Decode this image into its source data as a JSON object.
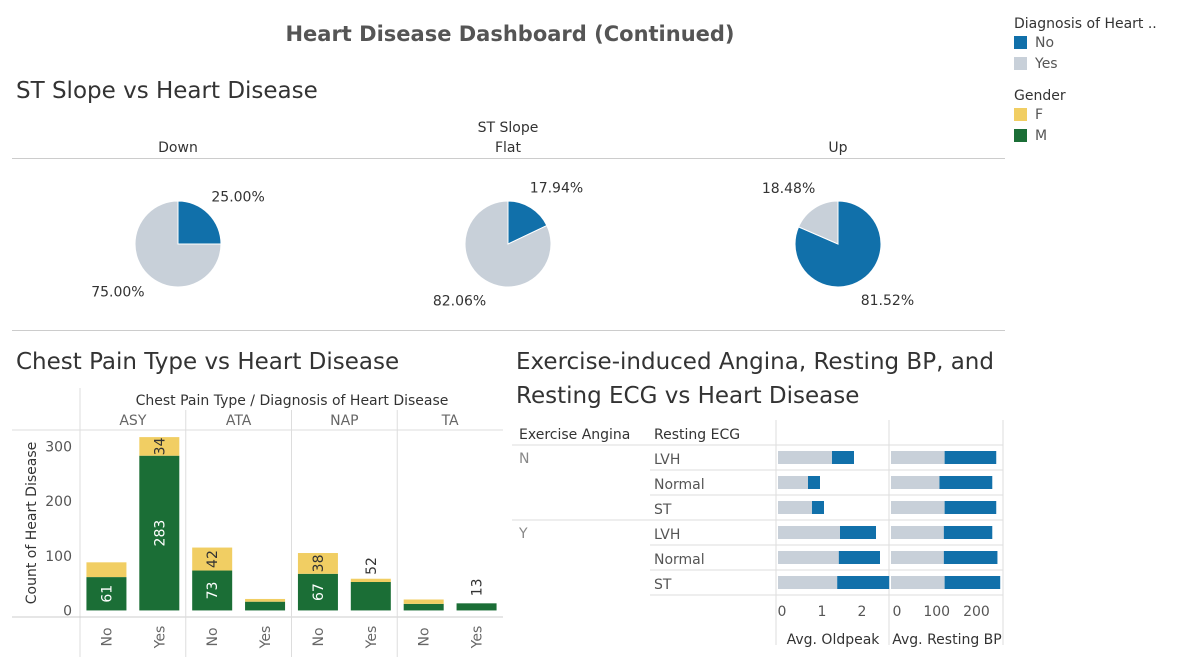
{
  "dashboard": {
    "title": "Heart Disease Dashboard (Continued)"
  },
  "legend": {
    "diagnosis": {
      "title": "Diagnosis of Heart ..",
      "items": [
        {
          "label": "No",
          "color": "#1170aa"
        },
        {
          "label": "Yes",
          "color": "#c8d0d9"
        }
      ]
    },
    "gender": {
      "title": "Gender",
      "items": [
        {
          "label": "F",
          "color": "#f1ce63"
        },
        {
          "label": "M",
          "color": "#1b6e36"
        }
      ]
    }
  },
  "st_slope": {
    "title": "ST Slope vs Heart Disease",
    "header": "ST Slope",
    "categories": [
      "Down",
      "Flat",
      "Up"
    ]
  },
  "chest_pain": {
    "title": "Chest Pain Type vs Heart Disease",
    "header": "Chest Pain Type  /  Diagnosis of Heart Disease",
    "ylabel": "Count of Heart Disease"
  },
  "angina": {
    "title_line1": "Exercise-induced Angina, Resting BP, and",
    "title_line2": "Resting ECG vs Heart Disease",
    "col_angina": "Exercise Angina",
    "col_ecg": "Resting ECG",
    "axis1_label": "Avg. Oldpeak",
    "axis2_label": "Avg. Resting BP"
  },
  "chart_data": [
    {
      "type": "pie",
      "title": "ST Slope vs Heart Disease",
      "facet": "ST Slope",
      "panels": [
        {
          "category": "Down",
          "slices": [
            {
              "label": "No",
              "value": 25.0,
              "text": "25.00%"
            },
            {
              "label": "Yes",
              "value": 75.0,
              "text": "75.00%"
            }
          ]
        },
        {
          "category": "Flat",
          "slices": [
            {
              "label": "No",
              "value": 17.94,
              "text": "17.94%"
            },
            {
              "label": "Yes",
              "value": 82.06,
              "text": "82.06%"
            }
          ]
        },
        {
          "category": "Up",
          "slices": [
            {
              "label": "No",
              "value": 81.52,
              "text": "81.52%"
            },
            {
              "label": "Yes",
              "value": 18.48,
              "text": "18.48%"
            }
          ]
        }
      ]
    },
    {
      "type": "bar",
      "stacked": true,
      "title": "Chest Pain Type vs Heart Disease",
      "ylabel": "Count of Heart Disease",
      "ylim": [
        -12,
        330
      ],
      "yticks": [
        0,
        100,
        200,
        300
      ],
      "groups": [
        {
          "name": "ASY",
          "bars": [
            {
              "x": "No",
              "M": 61,
              "F": 27,
              "labels": [
                "61"
              ]
            },
            {
              "x": "Yes",
              "M": 283,
              "F": 34,
              "labels": [
                "283",
                "34"
              ]
            }
          ]
        },
        {
          "name": "ATA",
          "bars": [
            {
              "x": "No",
              "M": 73,
              "F": 42,
              "labels": [
                "73",
                "42"
              ]
            },
            {
              "x": "Yes",
              "M": 16,
              "F": 5,
              "labels": []
            }
          ]
        },
        {
          "name": "NAP",
          "bars": [
            {
              "x": "No",
              "M": 67,
              "F": 38,
              "labels": [
                "67",
                "38"
              ]
            },
            {
              "x": "Yes",
              "M": 52,
              "F": 6,
              "labels": [
                "52"
              ]
            }
          ]
        },
        {
          "name": "TA",
          "bars": [
            {
              "x": "No",
              "M": 12,
              "F": 8,
              "labels": []
            },
            {
              "x": "Yes",
              "M": 13,
              "F": 0,
              "labels": [
                "13"
              ]
            }
          ]
        }
      ],
      "series": [
        {
          "name": "M",
          "color": "#1b6e36"
        },
        {
          "name": "F",
          "color": "#f1ce63"
        }
      ]
    },
    {
      "type": "bar",
      "orientation": "horizontal",
      "stacked": true,
      "title": "Exercise-induced Angina, Resting BP, and Resting ECG vs Heart Disease",
      "rows": [
        {
          "angina": "N",
          "ecg": "LVH",
          "oldpeak": {
            "Yes": 1.35,
            "No": 0.55
          },
          "bp": {
            "Yes": 135,
            "No": 130
          }
        },
        {
          "angina": "",
          "ecg": "Normal",
          "oldpeak": {
            "Yes": 0.75,
            "No": 0.3
          },
          "bp": {
            "Yes": 122,
            "No": 133
          }
        },
        {
          "angina": "",
          "ecg": "ST",
          "oldpeak": {
            "Yes": 0.85,
            "No": 0.3
          },
          "bp": {
            "Yes": 135,
            "No": 130
          }
        },
        {
          "angina": "Y",
          "ecg": "LVH",
          "oldpeak": {
            "Yes": 1.55,
            "No": 0.9
          },
          "bp": {
            "Yes": 133,
            "No": 122
          }
        },
        {
          "angina": "",
          "ecg": "Normal",
          "oldpeak": {
            "Yes": 1.52,
            "No": 1.03
          },
          "bp": {
            "Yes": 133,
            "No": 135
          }
        },
        {
          "angina": "",
          "ecg": "ST",
          "oldpeak": {
            "Yes": 1.48,
            "No": 1.3
          },
          "bp": {
            "Yes": 135,
            "No": 140
          }
        }
      ],
      "axis1": {
        "label": "Avg. Oldpeak",
        "ticks": [
          0,
          1,
          2
        ],
        "max": 2.75
      },
      "axis2": {
        "label": "Avg. Resting BP",
        "ticks": [
          0,
          100,
          200
        ],
        "max": 282
      }
    }
  ]
}
